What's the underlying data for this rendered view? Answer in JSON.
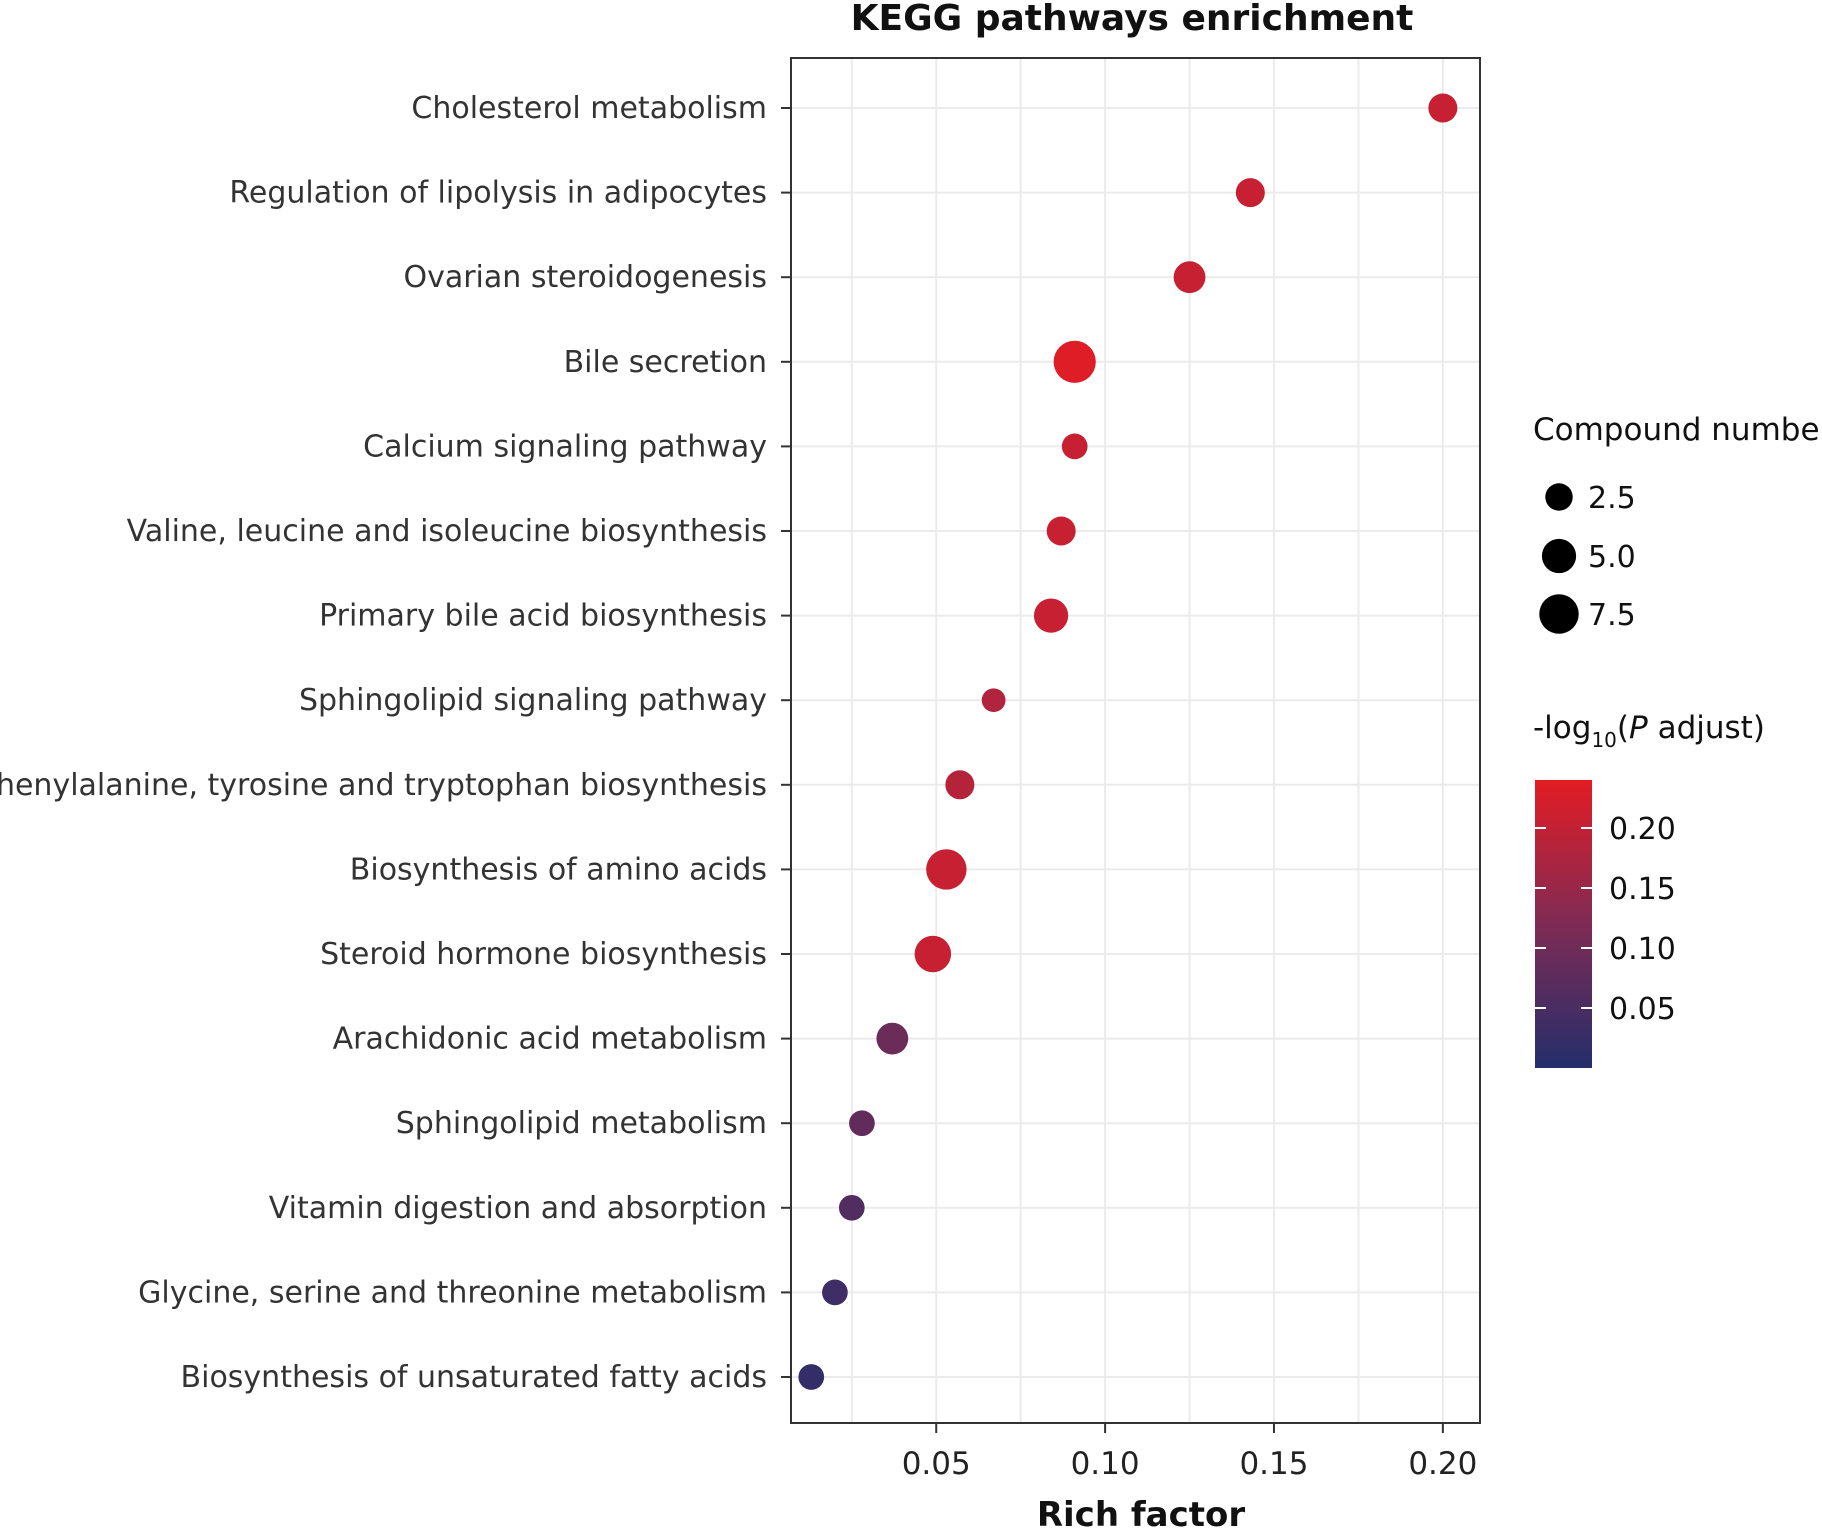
{
  "chart_data": {
    "type": "scatter",
    "title": "KEGG pathways enrichment",
    "xlabel": "Rich factor",
    "ylabel": "",
    "xlim": [
      0.007,
      0.211
    ],
    "x_ticks": [
      "0.05",
      "0.10",
      "0.15",
      "0.20"
    ],
    "x_tick_values": [
      0.05,
      0.1,
      0.15,
      0.2
    ],
    "grid": true,
    "categories": [
      "Cholesterol metabolism",
      "Regulation of lipolysis in adipocytes",
      "Ovarian steroidogenesis",
      "Bile secretion",
      "Calcium signaling pathway",
      "Valine, leucine and isoleucine biosynthesis",
      "Primary bile acid biosynthesis",
      "Sphingolipid signaling pathway",
      "Phenylalanine, tyrosine and tryptophan biosynthesis",
      "Biosynthesis of amino acids",
      "Steroid hormone biosynthesis",
      "Arachidonic acid metabolism",
      "Sphingolipid metabolism",
      "Vitamin digestion and absorption",
      "Glycine, serine and threonine metabolism",
      "Biosynthesis of unsaturated fatty acids"
    ],
    "points": [
      {
        "pathway": "Cholesterol metabolism",
        "rich_factor": 0.2,
        "compound_number": 3,
        "neg_log10_p_adjust": 0.205
      },
      {
        "pathway": "Regulation of lipolysis in adipocytes",
        "rich_factor": 0.143,
        "compound_number": 3,
        "neg_log10_p_adjust": 0.205
      },
      {
        "pathway": "Ovarian steroidogenesis",
        "rich_factor": 0.125,
        "compound_number": 4,
        "neg_log10_p_adjust": 0.205
      },
      {
        "pathway": "Bile secretion",
        "rich_factor": 0.091,
        "compound_number": 9,
        "neg_log10_p_adjust": 0.235
      },
      {
        "pathway": "Calcium signaling pathway",
        "rich_factor": 0.091,
        "compound_number": 2,
        "neg_log10_p_adjust": 0.205
      },
      {
        "pathway": "Valine, leucine and isoleucine biosynthesis",
        "rich_factor": 0.087,
        "compound_number": 3,
        "neg_log10_p_adjust": 0.205
      },
      {
        "pathway": "Primary bile acid biosynthesis",
        "rich_factor": 0.084,
        "compound_number": 5,
        "neg_log10_p_adjust": 0.205
      },
      {
        "pathway": "Sphingolipid signaling pathway",
        "rich_factor": 0.067,
        "compound_number": 1.5,
        "neg_log10_p_adjust": 0.18
      },
      {
        "pathway": "Phenylalanine, tyrosine and tryptophan biosynthesis",
        "rich_factor": 0.057,
        "compound_number": 3,
        "neg_log10_p_adjust": 0.185
      },
      {
        "pathway": "Biosynthesis of amino acids",
        "rich_factor": 0.053,
        "compound_number": 8,
        "neg_log10_p_adjust": 0.205
      },
      {
        "pathway": "Steroid hormone biosynthesis",
        "rich_factor": 0.049,
        "compound_number": 6,
        "neg_log10_p_adjust": 0.205
      },
      {
        "pathway": "Arachidonic acid metabolism",
        "rich_factor": 0.037,
        "compound_number": 4,
        "neg_log10_p_adjust": 0.095
      },
      {
        "pathway": "Sphingolipid metabolism",
        "rich_factor": 0.028,
        "compound_number": 2,
        "neg_log10_p_adjust": 0.08
      },
      {
        "pathway": "Vitamin digestion and absorption",
        "rich_factor": 0.025,
        "compound_number": 2,
        "neg_log10_p_adjust": 0.06
      },
      {
        "pathway": "Glycine, serine and threonine metabolism",
        "rich_factor": 0.02,
        "compound_number": 2,
        "neg_log10_p_adjust": 0.035
      },
      {
        "pathway": "Biosynthesis of unsaturated fatty acids",
        "rich_factor": 0.013,
        "compound_number": 2,
        "neg_log10_p_adjust": 0.02
      }
    ],
    "size_legend": {
      "title": "Compound number",
      "values": [
        2.5,
        5.0,
        7.5
      ],
      "labels": [
        "2.5",
        "5.0",
        "7.5"
      ]
    },
    "color_legend": {
      "title_prefix": "-log",
      "title_subscript": "10",
      "title_open": "(",
      "title_italic": "P",
      "title_suffix": " adjust)",
      "range": [
        0.0,
        0.24
      ],
      "ticks": [
        0.2,
        0.15,
        0.1,
        0.05
      ],
      "tick_labels": [
        "0.20",
        "0.15",
        "0.10",
        "0.05"
      ],
      "low_color": "#242e6b",
      "mid_color": "#7f2b55",
      "high_color": "#e31c24"
    },
    "legend_position": "right"
  }
}
